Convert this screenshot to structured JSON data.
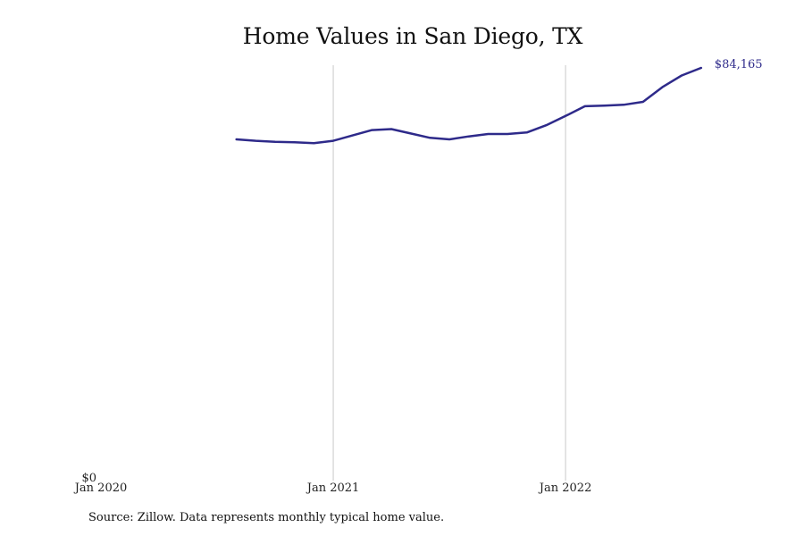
{
  "chart_data": {
    "type": "line",
    "title": "Home Values in San Diego, TX",
    "xlabel": "",
    "ylabel": "",
    "x_ticks": [
      "Jan 2020",
      "Jan 2021",
      "Jan 2022"
    ],
    "y_ticks": [
      "$0"
    ],
    "ylim": [
      0,
      84165
    ],
    "grid": "vertical lines at yearly x ticks",
    "line_color": "#2e2a8a",
    "grid_color": "#c8c8c8",
    "end_label": "$84,165",
    "series": [
      {
        "x": [
          "2020-08",
          "2020-09",
          "2020-10",
          "2020-11",
          "2020-12",
          "2021-01",
          "2021-02",
          "2021-03",
          "2021-04",
          "2021-05",
          "2021-06",
          "2021-07",
          "2021-08",
          "2021-09",
          "2021-10",
          "2021-11",
          "2021-12",
          "2022-01",
          "2022-02",
          "2022-03",
          "2022-04",
          "2022-05",
          "2022-06",
          "2022-07",
          "2022-08"
        ],
        "values": [
          69500,
          69200,
          69000,
          68900,
          68700,
          69200,
          70300,
          71400,
          71600,
          70700,
          69800,
          69500,
          70100,
          70600,
          70600,
          70900,
          72400,
          74300,
          76300,
          76400,
          76600,
          77200,
          80200,
          82600,
          84165
        ]
      }
    ]
  },
  "source_note": "Source: Zillow. Data represents monthly typical home value."
}
